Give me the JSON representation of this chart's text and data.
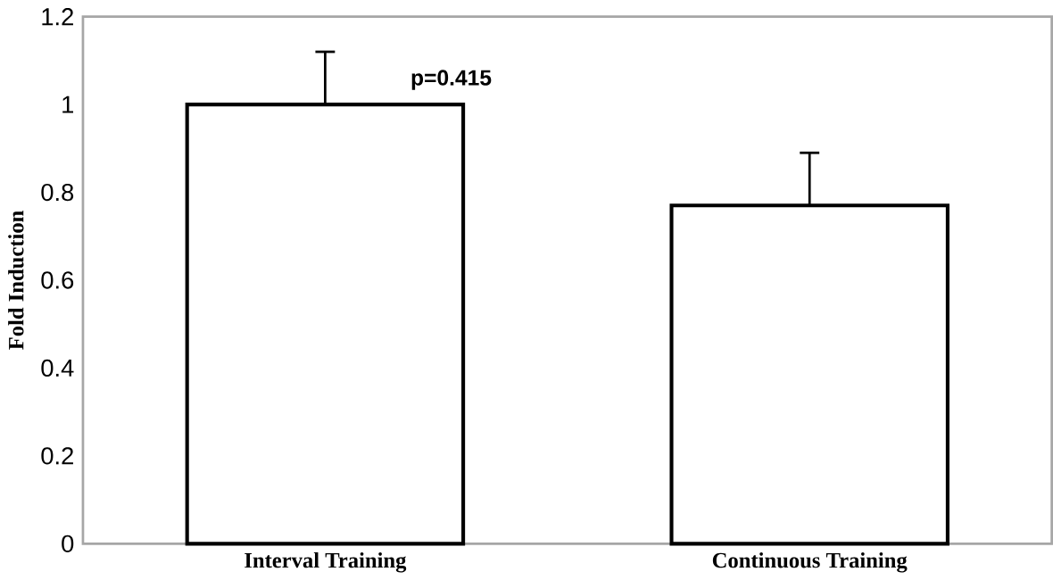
{
  "chart_data": {
    "type": "bar",
    "ylabel": "Fold Induction",
    "categories": [
      "Interval Training",
      "Continuous Training"
    ],
    "values": [
      1.0,
      0.77
    ],
    "color": "#ffffff",
    "errors": [
      [
        1.0,
        1.12
      ],
      [
        0.77,
        0.89
      ]
    ],
    "ylim": [
      0,
      1.2
    ],
    "yticks": [
      0,
      0.2,
      0.4,
      0.6,
      0.8,
      1,
      1.2
    ],
    "annotations": [
      "p=0.415"
    ]
  }
}
